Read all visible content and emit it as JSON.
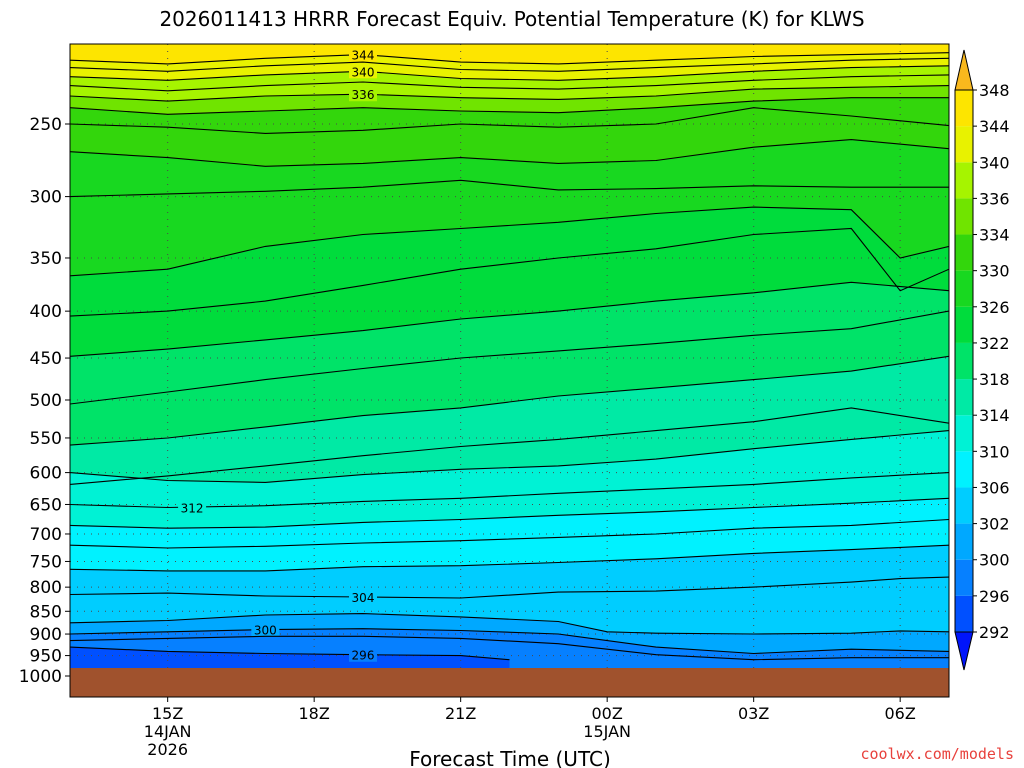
{
  "chart_data": {
    "type": "heatmap",
    "title": "2026011413 HRRR Forecast Equiv. Potential Temperature (K) for KLWS",
    "xlabel": "Forecast Time (UTC)",
    "ylabel": "",
    "y_axis": "pressure (hPa), log scale, inverted",
    "x_axis_ticks": [
      {
        "label": [
          "15Z",
          "14JAN",
          "2026"
        ],
        "hours_from_13z": 2
      },
      {
        "label": [
          "18Z"
        ],
        "hours_from_13z": 5
      },
      {
        "label": [
          "21Z"
        ],
        "hours_from_13z": 8
      },
      {
        "label": [
          "00Z",
          "15JAN"
        ],
        "hours_from_13z": 11
      },
      {
        "label": [
          "03Z"
        ],
        "hours_from_13z": 14
      },
      {
        "label": [
          "06Z"
        ],
        "hours_from_13z": 17
      }
    ],
    "xlim_hours_from_13z": [
      0,
      18
    ],
    "pressure_levels": [
      250,
      300,
      350,
      400,
      450,
      500,
      550,
      600,
      650,
      700,
      750,
      800,
      850,
      900,
      950,
      1000
    ],
    "ylim_hpa": [
      200,
      1000
    ],
    "surface_ground_hpa": 975,
    "colorbar": {
      "levels": [
        292,
        296,
        300,
        302,
        306,
        310,
        314,
        318,
        322,
        326,
        330,
        334,
        336,
        340,
        344,
        348
      ],
      "colors": [
        "#0015fb",
        "#0050ff",
        "#0680ff",
        "#00a8ff",
        "#00cdff",
        "#00f2ff",
        "#00f2d5",
        "#00eaa5",
        "#00e368",
        "#00dc3c",
        "#18d820",
        "#33d60c",
        "#70e400",
        "#a6f400",
        "#e8f200",
        "#fde500",
        "#f9b81d"
      ],
      "extend": "both"
    },
    "contours": [
      {
        "value": 344,
        "label": "344",
        "points": [
          [
            0,
            213
          ],
          [
            2,
            215
          ],
          [
            4,
            212
          ],
          [
            6,
            210
          ],
          [
            8,
            214
          ],
          [
            10,
            215
          ],
          [
            12,
            213
          ],
          [
            14,
            211
          ],
          [
            16,
            210
          ],
          [
            18,
            209
          ]
        ]
      },
      {
        "value": 342,
        "points": [
          [
            0,
            217
          ],
          [
            2,
            219
          ],
          [
            4,
            216
          ],
          [
            6,
            214
          ],
          [
            8,
            218
          ],
          [
            10,
            219
          ],
          [
            12,
            217
          ],
          [
            14,
            215
          ],
          [
            16,
            213
          ],
          [
            18,
            212
          ]
        ]
      },
      {
        "value": 340,
        "label": "340",
        "points": [
          [
            0,
            222
          ],
          [
            2,
            224
          ],
          [
            4,
            221
          ],
          [
            6,
            219
          ],
          [
            8,
            223
          ],
          [
            10,
            224
          ],
          [
            12,
            222
          ],
          [
            14,
            219
          ],
          [
            16,
            217
          ],
          [
            18,
            216
          ]
        ]
      },
      {
        "value": 338,
        "points": [
          [
            0,
            227
          ],
          [
            2,
            230
          ],
          [
            4,
            227
          ],
          [
            6,
            225
          ],
          [
            8,
            228
          ],
          [
            10,
            229
          ],
          [
            12,
            227
          ],
          [
            14,
            224
          ],
          [
            16,
            222
          ],
          [
            18,
            221
          ]
        ]
      },
      {
        "value": 336,
        "label": "336",
        "points": [
          [
            0,
            233
          ],
          [
            2,
            236
          ],
          [
            4,
            233
          ],
          [
            6,
            232
          ],
          [
            8,
            234
          ],
          [
            10,
            235
          ],
          [
            12,
            233
          ],
          [
            14,
            229
          ],
          [
            16,
            228
          ],
          [
            18,
            227
          ]
        ]
      },
      {
        "value": 334,
        "points": [
          [
            0,
            240
          ],
          [
            2,
            244
          ],
          [
            4,
            242
          ],
          [
            6,
            240
          ],
          [
            8,
            242
          ],
          [
            10,
            243
          ],
          [
            12,
            240
          ],
          [
            14,
            236
          ],
          [
            16,
            234
          ],
          [
            18,
            234
          ]
        ]
      },
      {
        "value": 332,
        "points": [
          [
            0,
            250
          ],
          [
            2,
            252
          ],
          [
            4,
            256
          ],
          [
            6,
            254
          ],
          [
            8,
            250
          ],
          [
            10,
            252
          ],
          [
            12,
            250
          ],
          [
            14,
            240
          ],
          [
            16,
            245
          ],
          [
            18,
            251
          ]
        ]
      },
      {
        "value": 330,
        "points": [
          [
            0,
            268
          ],
          [
            2,
            272
          ],
          [
            4,
            278
          ],
          [
            6,
            276
          ],
          [
            8,
            272
          ],
          [
            10,
            276
          ],
          [
            12,
            274
          ],
          [
            14,
            265
          ],
          [
            16,
            260
          ],
          [
            18,
            266
          ]
        ]
      },
      {
        "value": 328,
        "points": [
          [
            0,
            300
          ],
          [
            2,
            298
          ],
          [
            4,
            296
          ],
          [
            6,
            293
          ],
          [
            8,
            288
          ],
          [
            10,
            295
          ],
          [
            12,
            294
          ],
          [
            14,
            292
          ],
          [
            16,
            293
          ],
          [
            18,
            293
          ]
        ]
      },
      {
        "value": 326,
        "points": [
          [
            0,
            366
          ],
          [
            2,
            360
          ],
          [
            4,
            340
          ],
          [
            6,
            330
          ],
          [
            8,
            325
          ],
          [
            10,
            320
          ],
          [
            12,
            313
          ],
          [
            14,
            308
          ],
          [
            16,
            310
          ],
          [
            17,
            350
          ],
          [
            18,
            340
          ]
        ]
      },
      {
        "value": 324,
        "points": [
          [
            0,
            405
          ],
          [
            2,
            400
          ],
          [
            4,
            390
          ],
          [
            6,
            375
          ],
          [
            8,
            360
          ],
          [
            10,
            350
          ],
          [
            12,
            342
          ],
          [
            14,
            330
          ],
          [
            16,
            325
          ],
          [
            17,
            380
          ],
          [
            18,
            360
          ]
        ]
      },
      {
        "value": 322,
        "points": [
          [
            0,
            448
          ],
          [
            2,
            440
          ],
          [
            4,
            430
          ],
          [
            6,
            420
          ],
          [
            8,
            408
          ],
          [
            10,
            400
          ],
          [
            12,
            390
          ],
          [
            14,
            382
          ],
          [
            16,
            372
          ],
          [
            18,
            380
          ]
        ]
      },
      {
        "value": 320,
        "points": [
          [
            0,
            505
          ],
          [
            2,
            490
          ],
          [
            4,
            475
          ],
          [
            6,
            462
          ],
          [
            8,
            450
          ],
          [
            10,
            442
          ],
          [
            12,
            434
          ],
          [
            14,
            425
          ],
          [
            16,
            418
          ],
          [
            18,
            400
          ]
        ]
      },
      {
        "value": 318,
        "points": [
          [
            0,
            560
          ],
          [
            2,
            550
          ],
          [
            4,
            535
          ],
          [
            6,
            520
          ],
          [
            8,
            510
          ],
          [
            10,
            495
          ],
          [
            12,
            485
          ],
          [
            14,
            475
          ],
          [
            16,
            465
          ],
          [
            18,
            448
          ]
        ]
      },
      {
        "value": 316,
        "points": [
          [
            0,
            618
          ],
          [
            2,
            605
          ],
          [
            4,
            590
          ],
          [
            6,
            575
          ],
          [
            8,
            562
          ],
          [
            10,
            552
          ],
          [
            12,
            540
          ],
          [
            14,
            528
          ],
          [
            16,
            510
          ],
          [
            18,
            530
          ]
        ]
      },
      {
        "value": 314,
        "points": [
          [
            0,
            600
          ],
          [
            2,
            612
          ],
          [
            4,
            615
          ],
          [
            6,
            603
          ],
          [
            8,
            595
          ],
          [
            10,
            590
          ],
          [
            12,
            580
          ],
          [
            14,
            565
          ],
          [
            16,
            552
          ],
          [
            18,
            540
          ]
        ]
      },
      {
        "value": 312,
        "label": "312",
        "points": [
          [
            0,
            650
          ],
          [
            2,
            655
          ],
          [
            4,
            652
          ],
          [
            6,
            645
          ],
          [
            8,
            640
          ],
          [
            10,
            632
          ],
          [
            12,
            625
          ],
          [
            14,
            618
          ],
          [
            16,
            608
          ],
          [
            18,
            600
          ]
        ]
      },
      {
        "value": 310,
        "points": [
          [
            0,
            685
          ],
          [
            2,
            690
          ],
          [
            4,
            688
          ],
          [
            6,
            680
          ],
          [
            8,
            675
          ],
          [
            10,
            668
          ],
          [
            12,
            662
          ],
          [
            14,
            655
          ],
          [
            16,
            648
          ],
          [
            18,
            640
          ]
        ]
      },
      {
        "value": 308,
        "points": [
          [
            0,
            720
          ],
          [
            2,
            725
          ],
          [
            4,
            722
          ],
          [
            6,
            716
          ],
          [
            8,
            712
          ],
          [
            10,
            706
          ],
          [
            12,
            700
          ],
          [
            14,
            690
          ],
          [
            16,
            685
          ],
          [
            18,
            675
          ]
        ]
      },
      {
        "value": 306,
        "points": [
          [
            0,
            765
          ],
          [
            2,
            768
          ],
          [
            4,
            768
          ],
          [
            6,
            760
          ],
          [
            8,
            758
          ],
          [
            10,
            752
          ],
          [
            12,
            745
          ],
          [
            14,
            735
          ],
          [
            16,
            728
          ],
          [
            18,
            720
          ]
        ]
      },
      {
        "value": 304,
        "label": "304",
        "points": [
          [
            0,
            815
          ],
          [
            2,
            812
          ],
          [
            4,
            818
          ],
          [
            6,
            820
          ],
          [
            8,
            822
          ],
          [
            10,
            810
          ],
          [
            12,
            808
          ],
          [
            14,
            800
          ],
          [
            16,
            790
          ],
          [
            17,
            783
          ],
          [
            18,
            780
          ]
        ]
      },
      {
        "value": 302,
        "points": [
          [
            0,
            875
          ],
          [
            2,
            870
          ],
          [
            4,
            858
          ],
          [
            6,
            855
          ],
          [
            8,
            862
          ],
          [
            10,
            872
          ],
          [
            11,
            895
          ],
          [
            12,
            898
          ],
          [
            14,
            900
          ],
          [
            16,
            898
          ],
          [
            17,
            893
          ],
          [
            18,
            895
          ]
        ]
      },
      {
        "value": 300,
        "label": "300",
        "points": [
          [
            0,
            900
          ],
          [
            2,
            895
          ],
          [
            4,
            890
          ],
          [
            6,
            888
          ],
          [
            8,
            892
          ],
          [
            10,
            900
          ],
          [
            12,
            930
          ],
          [
            14,
            945
          ],
          [
            16,
            935
          ],
          [
            18,
            940
          ]
        ]
      },
      {
        "value": 298,
        "points": [
          [
            0,
            915
          ],
          [
            2,
            910
          ],
          [
            4,
            905
          ],
          [
            6,
            905
          ],
          [
            8,
            910
          ],
          [
            10,
            922
          ],
          [
            12,
            948
          ],
          [
            14,
            960
          ],
          [
            16,
            955
          ],
          [
            18,
            955
          ]
        ]
      },
      {
        "value": 296,
        "label": "296",
        "points": [
          [
            0,
            930
          ],
          [
            2,
            940
          ],
          [
            4,
            945
          ],
          [
            6,
            948
          ],
          [
            8,
            950
          ],
          [
            9,
            960
          ]
        ]
      }
    ]
  },
  "credit": "coolwx.com/models"
}
